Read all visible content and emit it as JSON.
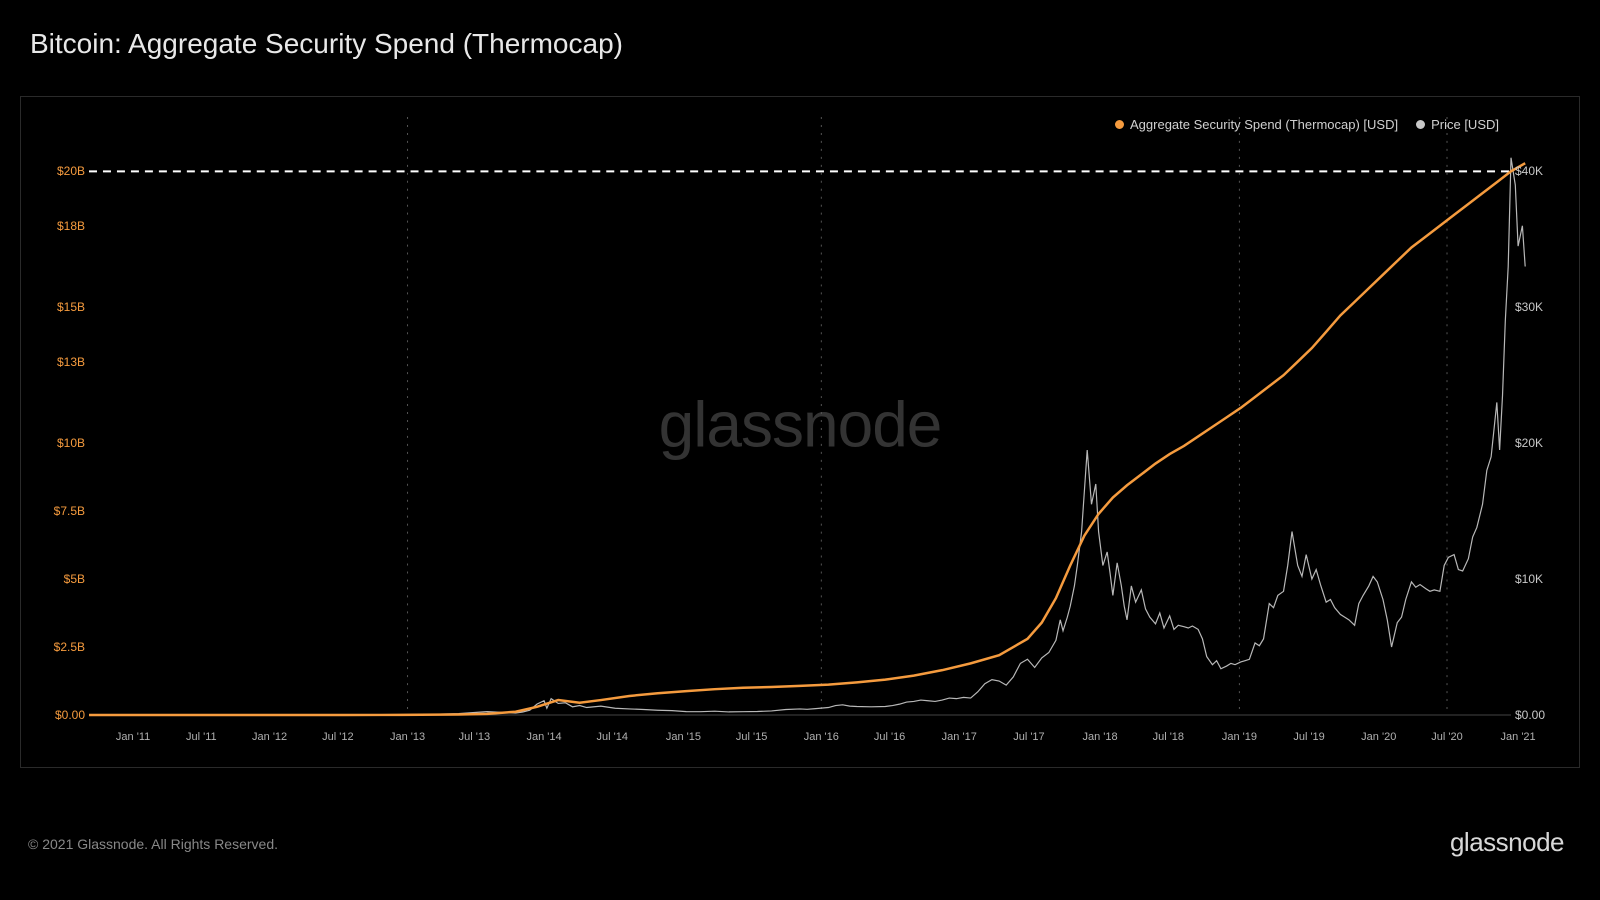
{
  "title": "Bitcoin: Aggregate Security Spend (Thermocap)",
  "footer_copyright": "© 2021 Glassnode. All Rights Reserved.",
  "footer_brand": "glassnode",
  "watermark": "glassnode",
  "legend": {
    "series1": {
      "label": "Aggregate Security Spend (Thermocap) [USD]",
      "color": "#f59b3e"
    },
    "series2": {
      "label": "Price [USD]",
      "color": "#c8c8c8"
    }
  },
  "chart": {
    "type": "line",
    "background_color": "#000000",
    "grid_color": "#2a2a2a",
    "border_color": "#2a2a2a",
    "watermark_color": "#333333",
    "x_axis": {
      "ticks": [
        "Jan '11",
        "Jul '11",
        "Jan '12",
        "Jul '12",
        "Jan '13",
        "Jul '13",
        "Jan '14",
        "Jul '14",
        "Jan '15",
        "Jul '15",
        "Jan '16",
        "Jul '16",
        "Jan '17",
        "Jul '17",
        "Jan '18",
        "Jul '18",
        "Jan '19",
        "Jul '19",
        "Jan '20",
        "Jul '20",
        "Jan '21"
      ],
      "tick_positions": [
        0.031,
        0.079,
        0.127,
        0.175,
        0.224,
        0.271,
        0.32,
        0.368,
        0.418,
        0.466,
        0.515,
        0.563,
        0.612,
        0.661,
        0.711,
        0.759,
        0.809,
        0.858,
        0.907,
        0.955,
        1.005
      ],
      "vertical_gridlines": [
        0.224,
        0.515,
        0.809,
        0.955
      ]
    },
    "y_left": {
      "ticks": [
        "$0.00",
        "$2.5B",
        "$5B",
        "$7.5B",
        "$10B",
        "$13B",
        "$15B",
        "$18B",
        "$20B"
      ],
      "values": [
        0,
        2.5,
        5,
        7.5,
        10,
        13,
        15,
        18,
        20
      ],
      "max": 22,
      "color": "#f59b3e"
    },
    "y_right": {
      "ticks": [
        "$0.00",
        "$10K",
        "$20K",
        "$30K",
        "$40K"
      ],
      "values": [
        0,
        10,
        20,
        30,
        40
      ],
      "max": 44,
      "color": "#c8c8c8"
    },
    "reference_line": {
      "y_left_value": 20,
      "dash": "8,6",
      "color": "#ffffff",
      "width": 2
    },
    "thermocap": {
      "color": "#f59b3e",
      "width": 2.5,
      "points": [
        [
          0.0,
          0.0
        ],
        [
          0.1,
          0.0
        ],
        [
          0.18,
          0.0
        ],
        [
          0.22,
          0.005
        ],
        [
          0.26,
          0.02
        ],
        [
          0.28,
          0.04
        ],
        [
          0.3,
          0.12
        ],
        [
          0.315,
          0.3
        ],
        [
          0.33,
          0.55
        ],
        [
          0.345,
          0.45
        ],
        [
          0.36,
          0.55
        ],
        [
          0.38,
          0.7
        ],
        [
          0.4,
          0.8
        ],
        [
          0.42,
          0.88
        ],
        [
          0.44,
          0.95
        ],
        [
          0.46,
          1.0
        ],
        [
          0.48,
          1.03
        ],
        [
          0.5,
          1.07
        ],
        [
          0.52,
          1.12
        ],
        [
          0.54,
          1.2
        ],
        [
          0.56,
          1.3
        ],
        [
          0.58,
          1.45
        ],
        [
          0.6,
          1.65
        ],
        [
          0.62,
          1.9
        ],
        [
          0.64,
          2.2
        ],
        [
          0.65,
          2.5
        ],
        [
          0.66,
          2.8
        ],
        [
          0.67,
          3.4
        ],
        [
          0.68,
          4.3
        ],
        [
          0.69,
          5.5
        ],
        [
          0.7,
          6.6
        ],
        [
          0.71,
          7.4
        ],
        [
          0.72,
          8.0
        ],
        [
          0.73,
          8.45
        ],
        [
          0.74,
          8.85
        ],
        [
          0.75,
          9.25
        ],
        [
          0.76,
          9.6
        ],
        [
          0.77,
          9.9
        ],
        [
          0.78,
          10.25
        ],
        [
          0.79,
          10.6
        ],
        [
          0.8,
          10.95
        ],
        [
          0.81,
          11.3
        ],
        [
          0.82,
          11.7
        ],
        [
          0.83,
          12.1
        ],
        [
          0.84,
          12.5
        ],
        [
          0.85,
          13.0
        ],
        [
          0.86,
          13.5
        ],
        [
          0.87,
          14.1
        ],
        [
          0.88,
          14.7
        ],
        [
          0.89,
          15.2
        ],
        [
          0.9,
          15.7
        ],
        [
          0.91,
          16.2
        ],
        [
          0.92,
          16.7
        ],
        [
          0.93,
          17.2
        ],
        [
          0.94,
          17.6
        ],
        [
          0.95,
          18.0
        ],
        [
          0.96,
          18.4
        ],
        [
          0.97,
          18.8
        ],
        [
          0.98,
          19.2
        ],
        [
          0.99,
          19.6
        ],
        [
          1.0,
          20.0
        ],
        [
          1.01,
          20.3
        ]
      ]
    },
    "price": {
      "color": "#b8b8b8",
      "width": 1.2,
      "points": [
        [
          0.0,
          0.0
        ],
        [
          0.05,
          0.01
        ],
        [
          0.1,
          0.01
        ],
        [
          0.15,
          0.01
        ],
        [
          0.2,
          0.02
        ],
        [
          0.22,
          0.03
        ],
        [
          0.24,
          0.05
        ],
        [
          0.26,
          0.1
        ],
        [
          0.28,
          0.25
        ],
        [
          0.29,
          0.2
        ],
        [
          0.3,
          0.15
        ],
        [
          0.305,
          0.22
        ],
        [
          0.31,
          0.35
        ],
        [
          0.315,
          0.8
        ],
        [
          0.32,
          1.05
        ],
        [
          0.322,
          0.5
        ],
        [
          0.325,
          1.2
        ],
        [
          0.33,
          0.85
        ],
        [
          0.335,
          0.9
        ],
        [
          0.34,
          0.6
        ],
        [
          0.345,
          0.7
        ],
        [
          0.35,
          0.55
        ],
        [
          0.36,
          0.65
        ],
        [
          0.37,
          0.5
        ],
        [
          0.38,
          0.45
        ],
        [
          0.39,
          0.4
        ],
        [
          0.4,
          0.35
        ],
        [
          0.41,
          0.32
        ],
        [
          0.42,
          0.25
        ],
        [
          0.43,
          0.24
        ],
        [
          0.44,
          0.28
        ],
        [
          0.45,
          0.23
        ],
        [
          0.46,
          0.24
        ],
        [
          0.47,
          0.26
        ],
        [
          0.48,
          0.3
        ],
        [
          0.49,
          0.4
        ],
        [
          0.5,
          0.45
        ],
        [
          0.505,
          0.42
        ],
        [
          0.51,
          0.46
        ],
        [
          0.52,
          0.55
        ],
        [
          0.525,
          0.7
        ],
        [
          0.53,
          0.75
        ],
        [
          0.535,
          0.65
        ],
        [
          0.54,
          0.62
        ],
        [
          0.55,
          0.6
        ],
        [
          0.56,
          0.62
        ],
        [
          0.565,
          0.7
        ],
        [
          0.57,
          0.8
        ],
        [
          0.575,
          0.95
        ],
        [
          0.58,
          1.0
        ],
        [
          0.585,
          1.1
        ],
        [
          0.59,
          1.05
        ],
        [
          0.595,
          1.0
        ],
        [
          0.6,
          1.1
        ],
        [
          0.605,
          1.25
        ],
        [
          0.61,
          1.2
        ],
        [
          0.615,
          1.3
        ],
        [
          0.62,
          1.25
        ],
        [
          0.625,
          1.7
        ],
        [
          0.63,
          2.3
        ],
        [
          0.635,
          2.6
        ],
        [
          0.64,
          2.5
        ],
        [
          0.645,
          2.2
        ],
        [
          0.65,
          2.8
        ],
        [
          0.655,
          3.8
        ],
        [
          0.66,
          4.1
        ],
        [
          0.665,
          3.5
        ],
        [
          0.67,
          4.2
        ],
        [
          0.675,
          4.6
        ],
        [
          0.68,
          5.5
        ],
        [
          0.683,
          7.0
        ],
        [
          0.685,
          6.2
        ],
        [
          0.688,
          7.2
        ],
        [
          0.69,
          8.0
        ],
        [
          0.693,
          9.5
        ],
        [
          0.695,
          11.0
        ],
        [
          0.698,
          13.5
        ],
        [
          0.7,
          16.5
        ],
        [
          0.702,
          19.5
        ],
        [
          0.705,
          15.5
        ],
        [
          0.708,
          17.0
        ],
        [
          0.71,
          13.5
        ],
        [
          0.713,
          11.0
        ],
        [
          0.716,
          12.0
        ],
        [
          0.718,
          10.5
        ],
        [
          0.72,
          8.8
        ],
        [
          0.723,
          11.2
        ],
        [
          0.726,
          9.5
        ],
        [
          0.728,
          8.0
        ],
        [
          0.73,
          7.0
        ],
        [
          0.733,
          9.5
        ],
        [
          0.736,
          8.3
        ],
        [
          0.74,
          9.2
        ],
        [
          0.743,
          7.8
        ],
        [
          0.746,
          7.2
        ],
        [
          0.75,
          6.7
        ],
        [
          0.753,
          7.5
        ],
        [
          0.756,
          6.4
        ],
        [
          0.76,
          7.3
        ],
        [
          0.763,
          6.3
        ],
        [
          0.766,
          6.6
        ],
        [
          0.77,
          6.5
        ],
        [
          0.773,
          6.4
        ],
        [
          0.776,
          6.55
        ],
        [
          0.78,
          6.3
        ],
        [
          0.783,
          5.6
        ],
        [
          0.786,
          4.3
        ],
        [
          0.79,
          3.7
        ],
        [
          0.793,
          4.0
        ],
        [
          0.796,
          3.4
        ],
        [
          0.8,
          3.6
        ],
        [
          0.803,
          3.8
        ],
        [
          0.806,
          3.7
        ],
        [
          0.81,
          3.9
        ],
        [
          0.813,
          4.0
        ],
        [
          0.816,
          4.1
        ],
        [
          0.82,
          5.3
        ],
        [
          0.823,
          5.1
        ],
        [
          0.826,
          5.6
        ],
        [
          0.83,
          8.2
        ],
        [
          0.833,
          7.9
        ],
        [
          0.836,
          8.8
        ],
        [
          0.84,
          9.1
        ],
        [
          0.843,
          11.0
        ],
        [
          0.846,
          13.5
        ],
        [
          0.85,
          11.0
        ],
        [
          0.853,
          10.2
        ],
        [
          0.856,
          11.8
        ],
        [
          0.86,
          10.0
        ],
        [
          0.863,
          10.7
        ],
        [
          0.866,
          9.6
        ],
        [
          0.87,
          8.3
        ],
        [
          0.873,
          8.5
        ],
        [
          0.876,
          7.9
        ],
        [
          0.88,
          7.4
        ],
        [
          0.883,
          7.2
        ],
        [
          0.886,
          7.0
        ],
        [
          0.89,
          6.6
        ],
        [
          0.893,
          8.2
        ],
        [
          0.896,
          8.8
        ],
        [
          0.9,
          9.5
        ],
        [
          0.903,
          10.2
        ],
        [
          0.906,
          9.8
        ],
        [
          0.91,
          8.5
        ],
        [
          0.913,
          7.0
        ],
        [
          0.916,
          5.0
        ],
        [
          0.92,
          6.8
        ],
        [
          0.923,
          7.2
        ],
        [
          0.926,
          8.5
        ],
        [
          0.93,
          9.8
        ],
        [
          0.933,
          9.4
        ],
        [
          0.936,
          9.6
        ],
        [
          0.94,
          9.3
        ],
        [
          0.943,
          9.1
        ],
        [
          0.946,
          9.2
        ],
        [
          0.95,
          9.1
        ],
        [
          0.953,
          11.0
        ],
        [
          0.956,
          11.6
        ],
        [
          0.96,
          11.8
        ],
        [
          0.963,
          10.7
        ],
        [
          0.966,
          10.6
        ],
        [
          0.97,
          11.5
        ],
        [
          0.973,
          13.1
        ],
        [
          0.976,
          13.8
        ],
        [
          0.98,
          15.5
        ],
        [
          0.983,
          18.0
        ],
        [
          0.986,
          19.0
        ],
        [
          0.99,
          23.0
        ],
        [
          0.992,
          19.5
        ],
        [
          0.994,
          23.5
        ],
        [
          0.996,
          29.0
        ],
        [
          0.998,
          33.0
        ],
        [
          1.0,
          41.0
        ],
        [
          1.003,
          39.0
        ],
        [
          1.005,
          34.5
        ],
        [
          1.008,
          36.0
        ],
        [
          1.01,
          33.0
        ]
      ]
    }
  }
}
